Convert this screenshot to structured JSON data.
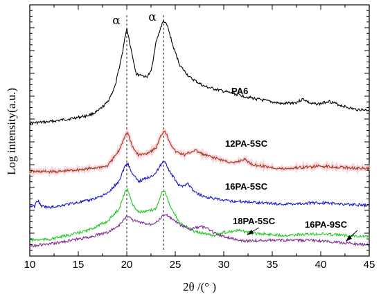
{
  "chart_data": {
    "type": "line",
    "xlabel": "2θ /(° )",
    "ylabel": "Log intensity(a.u.)",
    "xlim": [
      10,
      45
    ],
    "xticks": [
      "10",
      "15",
      "20",
      "25",
      "30",
      "35",
      "40",
      "45"
    ],
    "yticks_labeled": false,
    "reference_lines": [
      {
        "x": 20.0,
        "label": "α"
      },
      {
        "x": 23.8,
        "label": "α"
      }
    ],
    "series": [
      {
        "name": "PA6",
        "color": "#000000",
        "x": [
          10,
          12,
          14,
          16,
          17,
          18,
          18.8,
          19.5,
          20.0,
          20.5,
          21.0,
          21.5,
          22.0,
          22.5,
          23.0,
          23.5,
          23.8,
          24.2,
          24.8,
          25.5,
          26.5,
          28,
          30,
          33,
          36,
          37.5,
          38.2,
          39,
          40,
          40.8,
          42,
          43.5,
          45
        ],
        "y": [
          178,
          176,
          172,
          167,
          161,
          148,
          125,
          80,
          40,
          75,
          108,
          108,
          112,
          104,
          62,
          40,
          30,
          38,
          68,
          95,
          112,
          125,
          132,
          142,
          150,
          148,
          143,
          150,
          150,
          146,
          152,
          158,
          159
        ]
      },
      {
        "name": "12PA-5SC",
        "color": "#a0391f",
        "x": [
          10,
          13,
          16,
          18,
          19.2,
          19.8,
          20.1,
          20.6,
          21.2,
          22,
          23,
          23.6,
          23.9,
          24.4,
          25,
          26,
          27,
          28,
          29,
          31,
          32.1,
          33,
          36,
          40,
          45
        ],
        "y": [
          248,
          248,
          244,
          240,
          218,
          196,
          192,
          213,
          224,
          222,
          214,
          194,
          188,
          204,
          219,
          224,
          217,
          224,
          228,
          236,
          230,
          238,
          244,
          240,
          244
        ]
      },
      {
        "name": "16PA-5SC",
        "color": "#1414c8",
        "x": [
          10,
          10.5,
          10.8,
          11.2,
          12,
          14,
          16,
          18,
          19.2,
          19.8,
          20.1,
          20.6,
          21.2,
          22,
          23,
          23.6,
          23.9,
          24.5,
          25.5,
          26.3,
          27,
          28,
          30,
          33,
          36,
          40,
          45
        ],
        "y": [
          298,
          298,
          289,
          298,
          300,
          295,
          290,
          280,
          262,
          240,
          236,
          252,
          262,
          258,
          250,
          236,
          232,
          250,
          270,
          265,
          278,
          284,
          290,
          292,
          295,
          293,
          297
        ]
      },
      {
        "name": "18PA-5SC",
        "color": "#1ec81e",
        "x": [
          10,
          12,
          14,
          16,
          18,
          19.2,
          19.8,
          20.1,
          20.6,
          21.2,
          22,
          23,
          23.6,
          23.9,
          24.5,
          25.5,
          27,
          29,
          30,
          31.5,
          33,
          36,
          40,
          45
        ],
        "y": [
          347,
          346,
          340,
          333,
          320,
          302,
          278,
          273,
          296,
          306,
          306,
          302,
          278,
          274,
          300,
          322,
          335,
          340,
          336,
          333,
          337,
          340,
          338,
          342
        ]
      },
      {
        "name": "16PA-9SC",
        "color": "#7a2a90",
        "x": [
          10,
          12,
          14,
          16,
          18,
          19.2,
          19.8,
          20.1,
          20.6,
          21.5,
          22.5,
          23.5,
          23.9,
          24.4,
          25.5,
          26.5,
          27.5,
          28,
          29,
          30,
          31,
          32,
          35,
          40,
          45
        ],
        "y": [
          355,
          353,
          348,
          343,
          336,
          326,
          315,
          312,
          318,
          322,
          324,
          316,
          309,
          314,
          325,
          332,
          328,
          328,
          336,
          342,
          345,
          348,
          347,
          348,
          354
        ]
      }
    ]
  }
}
